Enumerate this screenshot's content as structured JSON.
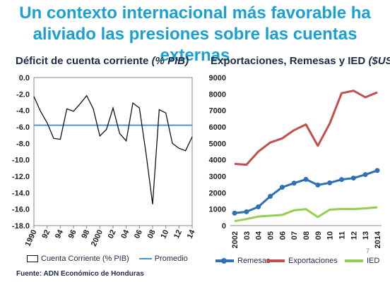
{
  "headline": {
    "line1": "Un contexto internacional más favorable ha",
    "line2": "aliviado las presiones sobre las cuentas externas"
  },
  "source": "Fuente: ADN Económico de Honduras",
  "page_number": "7",
  "colors": {
    "headline": "#1aa0d2",
    "promedio": "#4f95c9",
    "remesas": "#2e6fb5",
    "exportaciones": "#c0504d",
    "ied": "#92d050"
  },
  "chart_data": [
    {
      "type": "line",
      "title": "Déficit de cuenta corriente",
      "title_units": "(% PIB)",
      "ylim": [
        -18,
        0
      ],
      "yticks": [
        "0.0",
        "-2.0",
        "-4.0",
        "-6.0",
        "-8.0",
        "-10.0",
        "-12.0",
        "-14.0",
        "-16.0",
        "-18.0"
      ],
      "xticks": [
        "1990",
        "92",
        "94",
        "96",
        "98",
        "2000",
        "02",
        "04",
        "06",
        "08",
        "10",
        "12",
        "14"
      ],
      "x": [
        1990,
        1991,
        1992,
        1993,
        1994,
        1995,
        1996,
        1997,
        1998,
        1999,
        2000,
        2001,
        2002,
        2003,
        2004,
        2005,
        2006,
        2007,
        2008,
        2009,
        2010,
        2011,
        2012,
        2013,
        2014
      ],
      "series": [
        {
          "name": "Cuenta Corriente (% PIB)",
          "values": [
            -2.3,
            -4.1,
            -5.5,
            -7.4,
            -7.5,
            -3.8,
            -4.1,
            -3.2,
            -2.2,
            -3.8,
            -7.1,
            -6.3,
            -3.7,
            -6.8,
            -7.7,
            -3.1,
            -3.7,
            -9.2,
            -15.4,
            -3.9,
            -4.3,
            -8.0,
            -8.6,
            -8.9,
            -7.2
          ]
        },
        {
          "name": "Promedio",
          "constant": -5.8
        }
      ]
    },
    {
      "type": "line",
      "title": "Exportaciones, Remesas y IED",
      "title_units": "($US)",
      "ylim": [
        0,
        9000
      ],
      "yticks": [
        "0",
        "1000",
        "2000",
        "3000",
        "4000",
        "5000",
        "6000",
        "7000",
        "8000",
        "9000"
      ],
      "categories": [
        "2002",
        "03",
        "04",
        "05",
        "06",
        "07",
        "08",
        "09",
        "10",
        "11",
        "12",
        "13",
        "2014"
      ],
      "series": [
        {
          "name": "Remesas",
          "values": [
            760,
            840,
            1140,
            1780,
            2330,
            2580,
            2810,
            2470,
            2600,
            2800,
            2890,
            3100,
            3350
          ]
        },
        {
          "name": "Exportaciones",
          "values": [
            3750,
            3700,
            4500,
            5050,
            5300,
            5800,
            6150,
            4850,
            6200,
            8050,
            8200,
            7800,
            8100
          ]
        },
        {
          "name": "IED",
          "values": [
            270,
            400,
            550,
            600,
            650,
            930,
            1000,
            520,
            970,
            1010,
            1000,
            1050,
            1110
          ]
        }
      ]
    }
  ]
}
